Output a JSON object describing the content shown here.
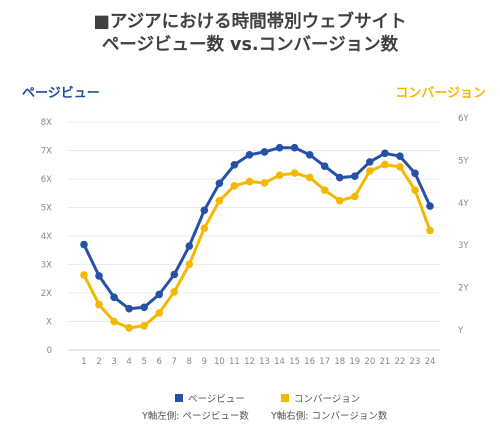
{
  "title_line1": "■アジアにおける時間帯別ウェブサイト",
  "title_line2": "ページビュー数 vs.コンバージョン数",
  "left_axis_title": "ページビュー",
  "right_axis_title": "コンバージョン",
  "note_left": "Y軸左側: ページビュー数",
  "note_right": "Y軸右側: コンバージョン数",
  "colors": {
    "pageviews": "#2750a8",
    "conversions": "#f5b800",
    "grid": "#d9d9d9",
    "tick": "#888888"
  },
  "chart_data": {
    "type": "line",
    "x": [
      1,
      2,
      3,
      4,
      5,
      6,
      7,
      8,
      9,
      10,
      11,
      12,
      13,
      14,
      15,
      16,
      17,
      18,
      19,
      20,
      21,
      22,
      23,
      24
    ],
    "x_tick_labels": [
      "1",
      "2",
      "3",
      "4",
      "5",
      "6",
      "7",
      "8",
      "9",
      "10",
      "11",
      "12",
      "13",
      "14",
      "15",
      "16",
      "17",
      "18",
      "19",
      "20",
      "21",
      "22",
      "23",
      "24"
    ],
    "y_left_tick_labels": [
      "0",
      "X",
      "2X",
      "3X",
      "4X",
      "5X",
      "6X",
      "7X",
      "8X"
    ],
    "y_right_tick_labels": [
      "Y",
      "2Y",
      "3Y",
      "4Y",
      "5Y",
      "6Y"
    ],
    "ylim_left": [
      0,
      8
    ],
    "ylim_right": [
      0,
      6
    ],
    "grid": true,
    "legend_position": "bottom",
    "series": [
      {
        "name": "ページビュー",
        "axis": "left",
        "values": [
          3.7,
          2.6,
          1.85,
          1.45,
          1.5,
          1.95,
          2.65,
          3.65,
          4.9,
          5.85,
          6.5,
          6.85,
          6.95,
          7.1,
          7.1,
          6.85,
          6.45,
          6.05,
          6.1,
          6.6,
          6.9,
          6.8,
          6.2,
          5.05
        ]
      },
      {
        "name": "コンバージョン",
        "axis": "right",
        "values": [
          2.3,
          1.6,
          1.2,
          1.05,
          1.1,
          1.4,
          1.9,
          2.55,
          3.4,
          4.05,
          4.4,
          4.5,
          4.47,
          4.65,
          4.7,
          4.6,
          4.3,
          4.05,
          4.15,
          4.75,
          4.9,
          4.85,
          4.3,
          3.35
        ]
      }
    ]
  }
}
